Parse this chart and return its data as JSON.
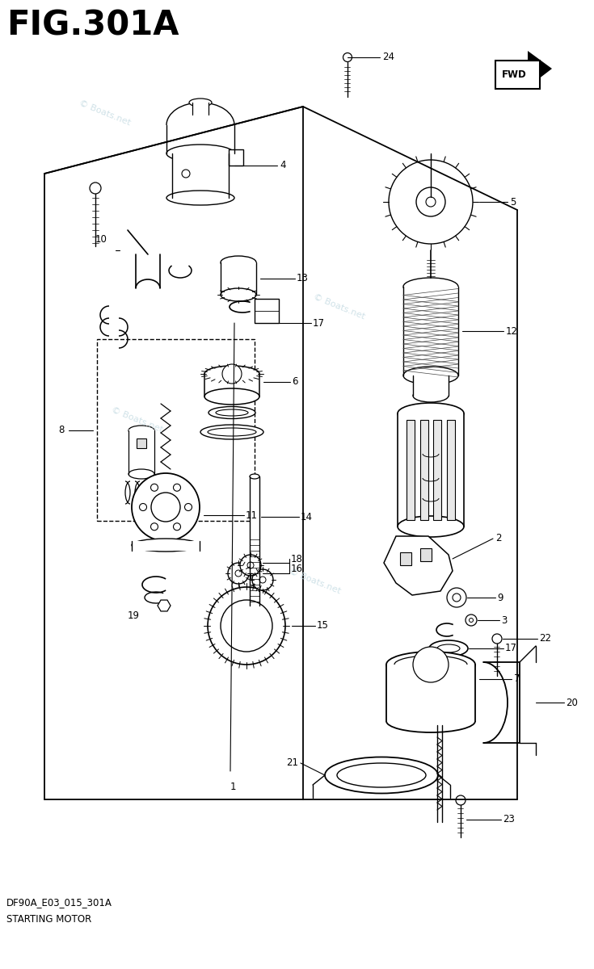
{
  "title": "FIG.301A",
  "subtitle_line1": "DF90A_E03_015_301A",
  "subtitle_line2": "STARTING MOTOR",
  "bg": "#ffffff",
  "lc": "#000000",
  "wc": "#c8dde4",
  "wm": "© Boats.net"
}
